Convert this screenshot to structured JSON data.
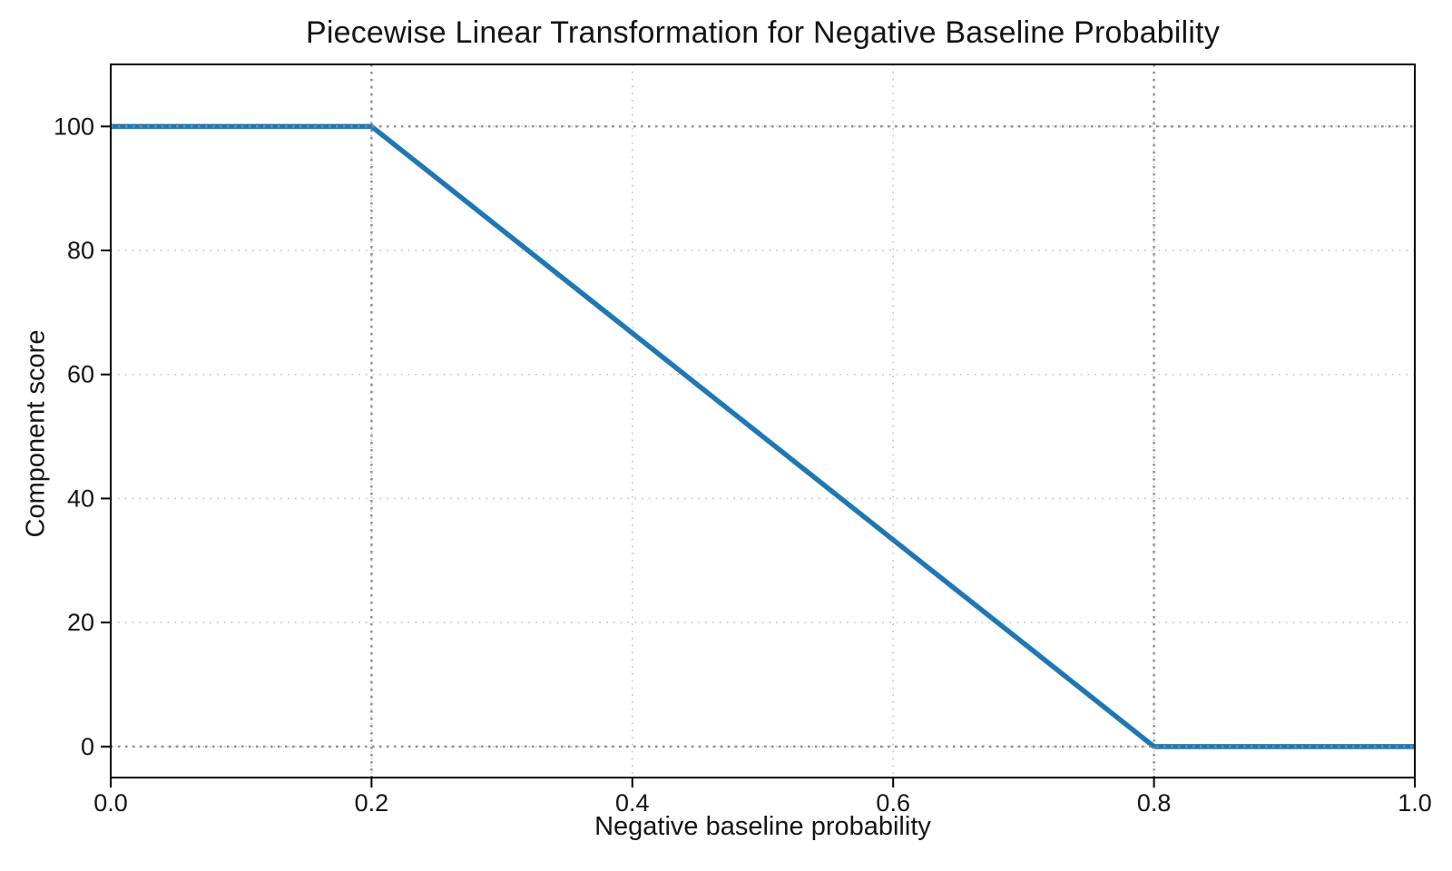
{
  "chart_data": {
    "type": "line",
    "title": "Piecewise Linear Transformation for Negative Baseline Probability",
    "xlabel": "Negative baseline probability",
    "ylabel": "Component score",
    "xlim": [
      0,
      1
    ],
    "ylim": [
      -5,
      110
    ],
    "xticks": {
      "values": [
        0,
        0.2,
        0.4,
        0.6,
        0.8,
        1
      ],
      "labels": [
        "0.0",
        "0.2",
        "0.4",
        "0.6",
        "0.8",
        "1.0"
      ]
    },
    "yticks": {
      "values": [
        0,
        20,
        40,
        60,
        80,
        100
      ],
      "labels": [
        "0",
        "20",
        "40",
        "60",
        "80",
        "100"
      ]
    },
    "grid": {
      "show": true,
      "style": "dotted",
      "color": "#c8c8c8"
    },
    "reference_lines": [
      {
        "axis": "x",
        "value": 0.2,
        "color": "#8c8c8c",
        "style": "dotted"
      },
      {
        "axis": "x",
        "value": 0.8,
        "color": "#8c8c8c",
        "style": "dotted"
      },
      {
        "axis": "y",
        "value": 0,
        "color": "#8c8c8c",
        "style": "dotted"
      },
      {
        "axis": "y",
        "value": 100,
        "color": "#8c8c8c",
        "style": "dotted"
      }
    ],
    "series": [
      {
        "name": "component_score",
        "color": "#1f77b4",
        "line_width": 5.5,
        "points": [
          {
            "x": 0.0,
            "y": 100
          },
          {
            "x": 0.2,
            "y": 100
          },
          {
            "x": 0.8,
            "y": 0
          },
          {
            "x": 1.0,
            "y": 0
          }
        ]
      }
    ],
    "spine_color": "#000000",
    "segments_described": {
      "flat_high": "score 100 for probability 0.0 to 0.2",
      "linear_decline": "score 100 down to 0 for probability 0.2 to 0.8",
      "flat_low": "score 0 for probability 0.8 to 1.0"
    }
  }
}
